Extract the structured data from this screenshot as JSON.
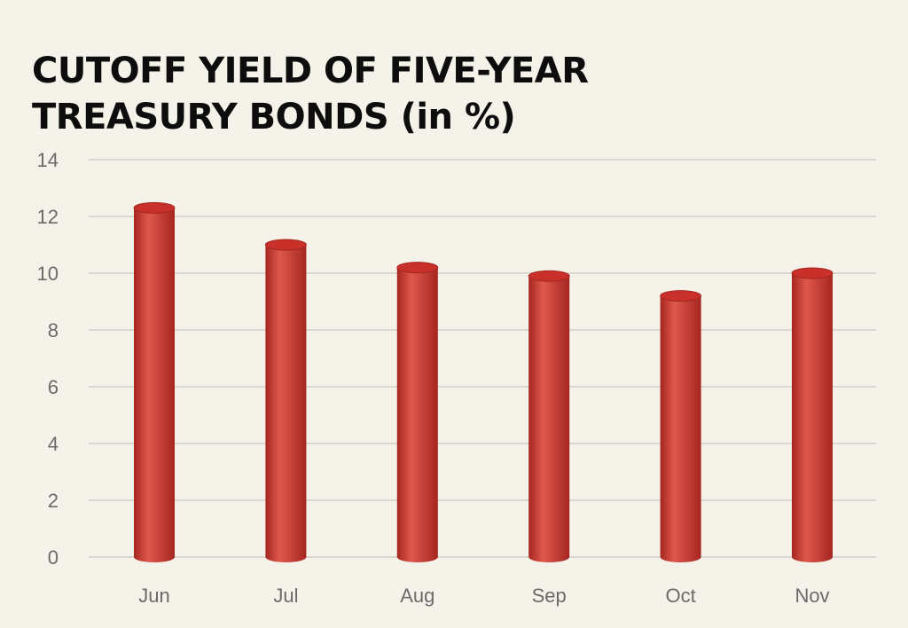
{
  "chart_data": {
    "type": "bar",
    "title_lines": [
      "CUTOFF YIELD OF FIVE-YEAR",
      "TREASURY BONDS (in %)"
    ],
    "categories": [
      "Jun",
      "Jul",
      "Aug",
      "Sep",
      "Oct",
      "Nov"
    ],
    "values": [
      12.3,
      11.0,
      10.2,
      9.9,
      9.2,
      10.0
    ],
    "xlabel": "",
    "ylabel": "",
    "ylim": [
      0,
      14
    ],
    "yticks": [
      0,
      2,
      4,
      6,
      8,
      10,
      12,
      14
    ],
    "grid": true,
    "legend": "none",
    "bar_color": "#c9302a",
    "bar_highlight": "#e0584d",
    "bar_shadow": "#a52620",
    "grid_color": "#d9d7d0",
    "background": "#f5f2e9"
  }
}
